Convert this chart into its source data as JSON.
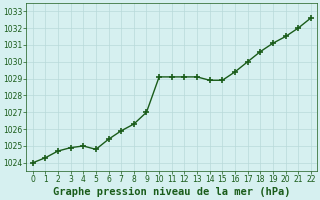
{
  "x": [
    0,
    1,
    2,
    3,
    4,
    5,
    6,
    7,
    8,
    9,
    10,
    11,
    12,
    13,
    14,
    15,
    16,
    17,
    18,
    19,
    20,
    21,
    22
  ],
  "y": [
    1024.0,
    1024.3,
    1024.7,
    1024.9,
    1025.0,
    1024.8,
    1025.4,
    1025.9,
    1026.3,
    1027.0,
    1029.1,
    1029.1,
    1029.1,
    1029.1,
    1028.9,
    1028.9,
    1029.4,
    1030.0,
    1030.6,
    1031.1,
    1031.5,
    1032.0,
    1032.6
  ],
  "line_color": "#1a5c1a",
  "marker": "+",
  "marker_size": 4,
  "marker_linewidth": 1.2,
  "background_color": "#d6f0f0",
  "grid_color": "#b8dada",
  "xlabel": "Graphe pression niveau de la mer (hPa)",
  "xlabel_fontsize": 7.5,
  "ylim": [
    1023.5,
    1033.5
  ],
  "yticks": [
    1024,
    1025,
    1026,
    1027,
    1028,
    1029,
    1030,
    1031,
    1032,
    1033
  ],
  "xlim": [
    -0.5,
    22.5
  ],
  "xticks": [
    0,
    1,
    2,
    3,
    4,
    5,
    6,
    7,
    8,
    9,
    10,
    11,
    12,
    13,
    14,
    15,
    16,
    17,
    18,
    19,
    20,
    21,
    22
  ],
  "tick_fontsize": 5.5,
  "line_width": 1.0,
  "figsize": [
    3.2,
    2.0
  ],
  "dpi": 100
}
